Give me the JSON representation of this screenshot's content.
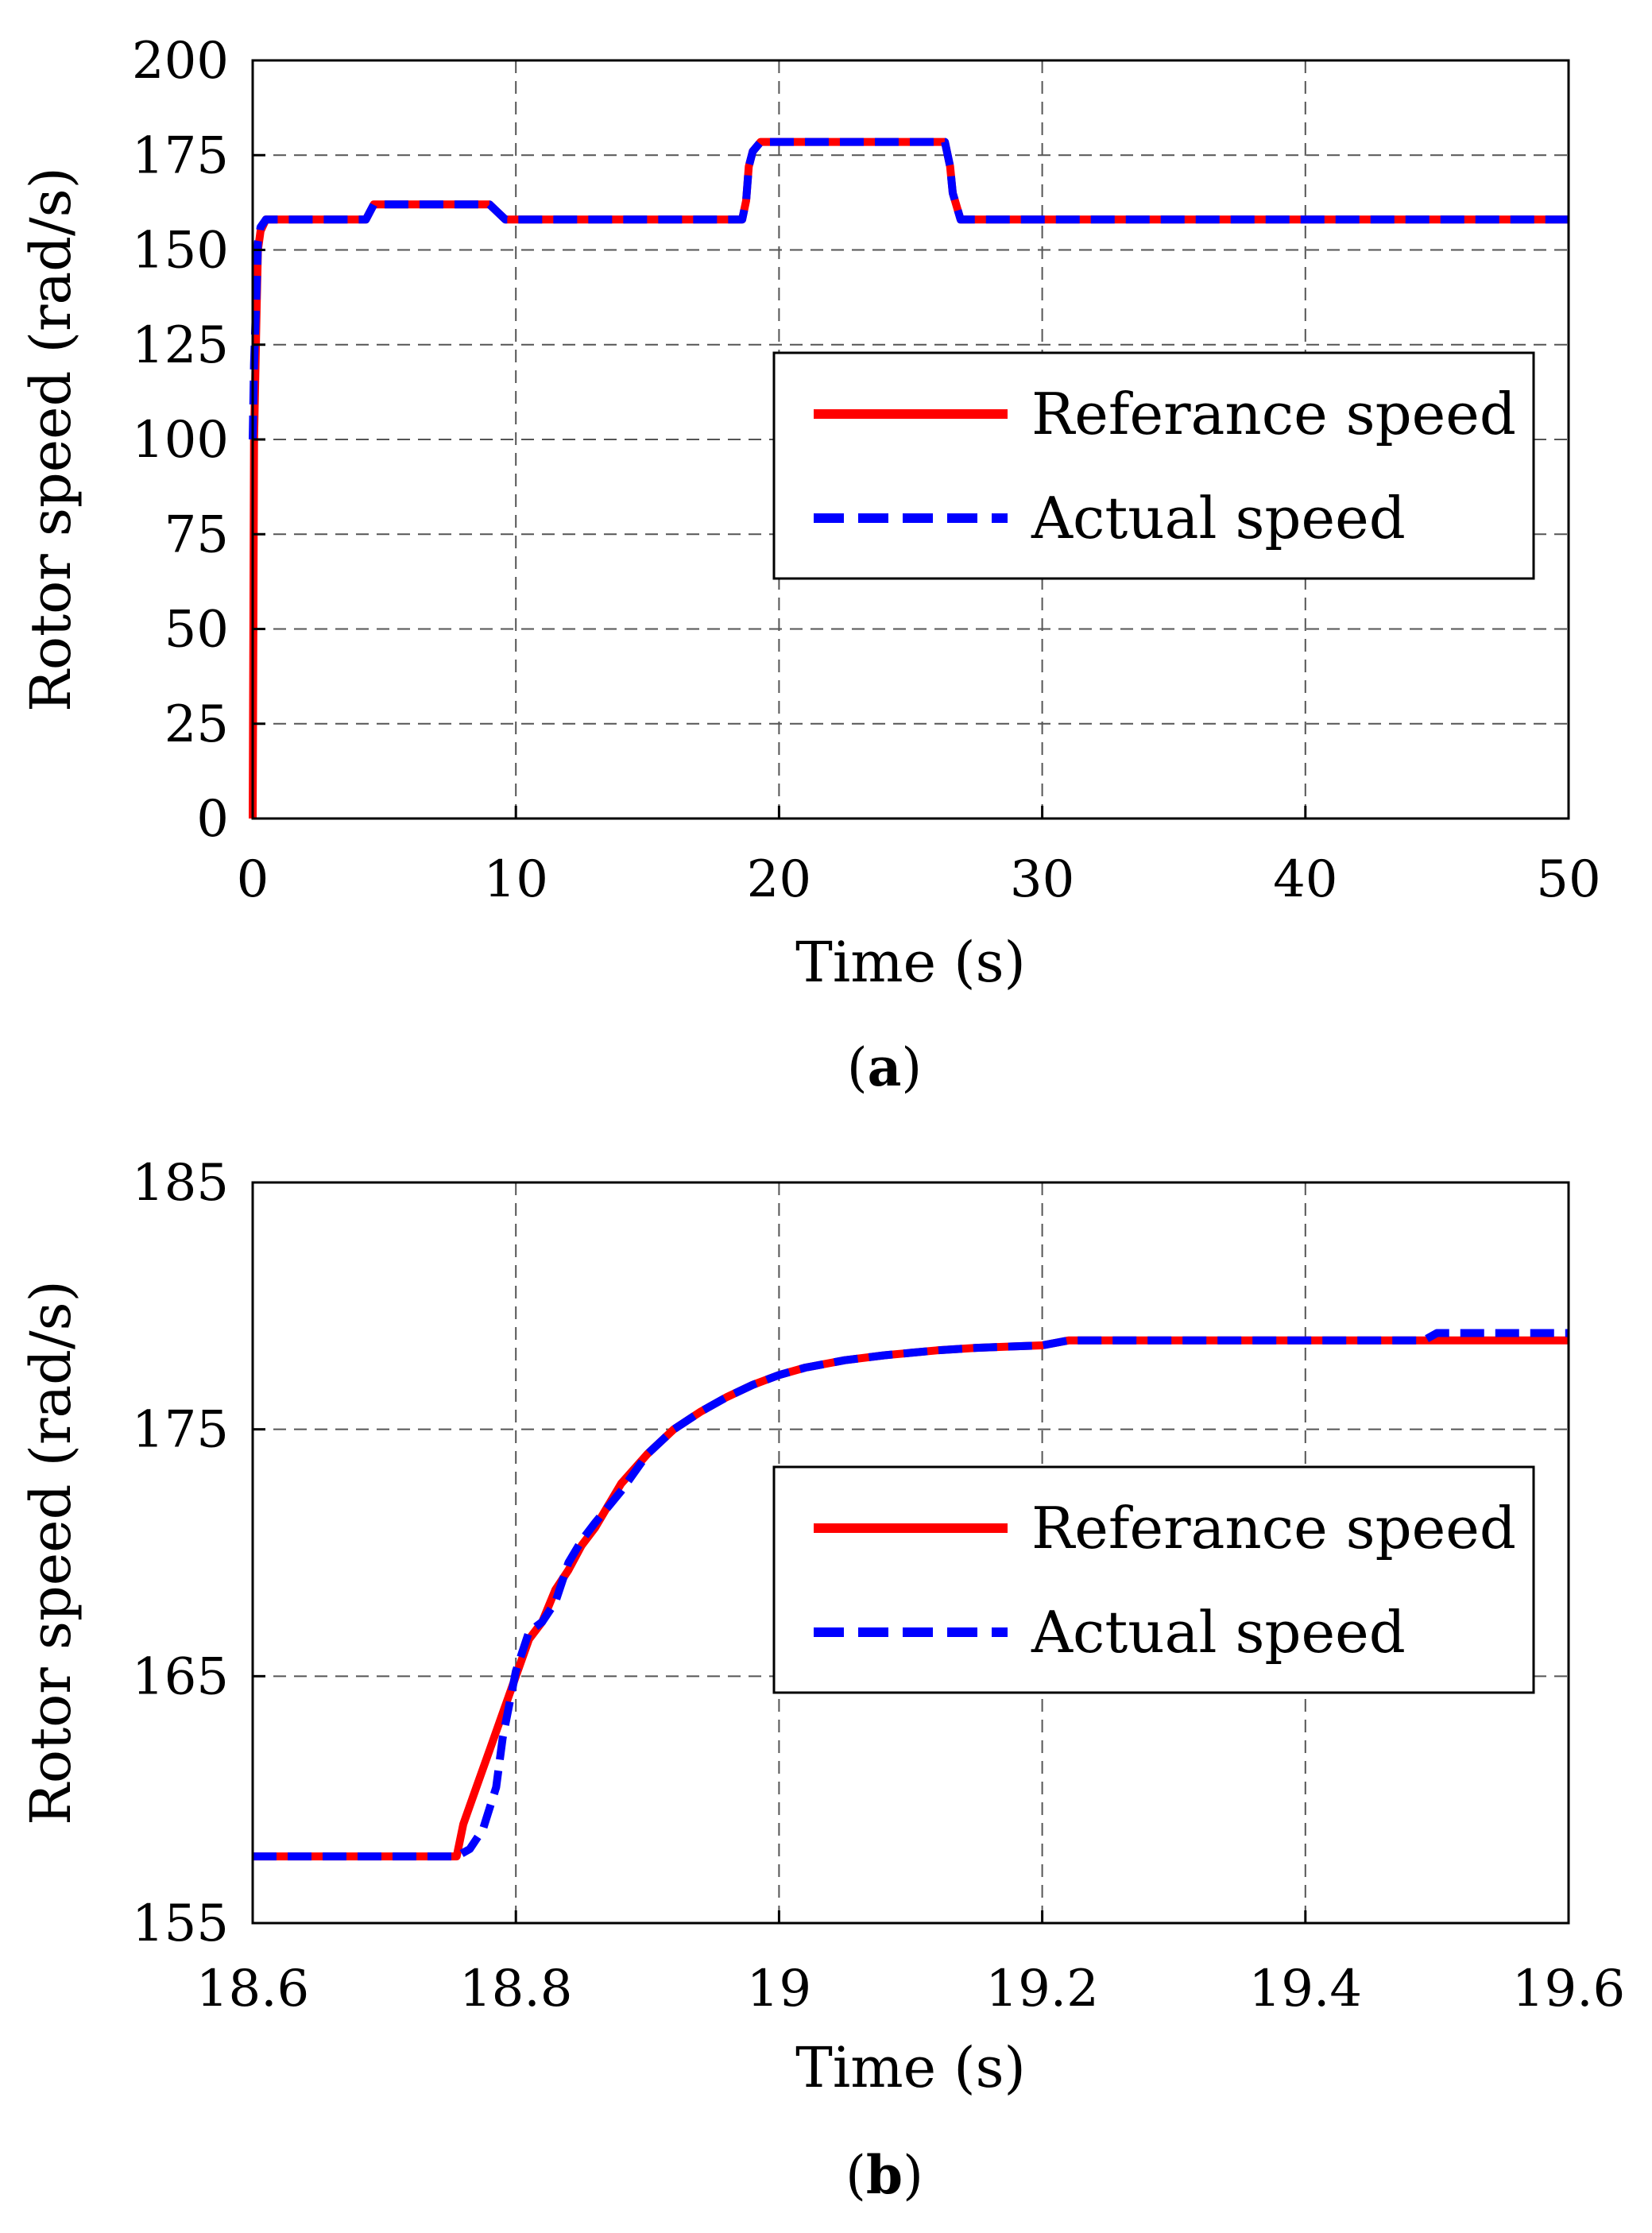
{
  "chart_data": [
    {
      "type": "line",
      "caption_open": "(",
      "caption_letter": "a",
      "caption_close": ")",
      "xlabel": "Time (s)",
      "ylabel": "Rotor speed (rad/s)",
      "xlim": [
        0,
        50
      ],
      "ylim": [
        0,
        200
      ],
      "grid": true,
      "xticks": [
        0,
        10,
        20,
        30,
        40,
        50
      ],
      "xtick_labels": [
        "0",
        "10",
        "20",
        "30",
        "40",
        "50"
      ],
      "yticks": [
        0,
        25,
        50,
        75,
        100,
        125,
        150,
        175,
        200
      ],
      "ytick_labels": [
        "0",
        "25",
        "50",
        "75",
        "100",
        "125",
        "150",
        "175",
        "200"
      ],
      "legend_position": "right",
      "series": [
        {
          "name": "Referance speed",
          "color": "#ff0000",
          "style": "solid",
          "x": [
            0,
            0.05,
            0.15,
            0.2,
            0.3,
            0.5,
            4.3,
            4.6,
            9.0,
            9.6,
            18.6,
            18.75,
            18.85,
            19.0,
            19.3,
            26.3,
            26.5,
            26.6,
            26.9,
            27.2,
            50
          ],
          "y": [
            0,
            100,
            135,
            150,
            155,
            158,
            158,
            162,
            162,
            158,
            158,
            163,
            172,
            176,
            178.5,
            178.5,
            172,
            165,
            158,
            158,
            158
          ]
        },
        {
          "name": "Actual speed",
          "color": "#0000ff",
          "style": "dashed",
          "x": [
            0,
            0.05,
            0.15,
            0.2,
            0.3,
            0.5,
            4.3,
            4.6,
            9.0,
            9.6,
            18.6,
            18.75,
            18.85,
            19.0,
            19.3,
            26.3,
            26.5,
            26.6,
            26.9,
            27.2,
            50
          ],
          "y": [
            100,
            120,
            140,
            152,
            156,
            158,
            158,
            162,
            162,
            158,
            158,
            163,
            172,
            176,
            178.5,
            178.5,
            172,
            165,
            158,
            158,
            158
          ]
        }
      ]
    },
    {
      "type": "line",
      "caption_open": "(",
      "caption_letter": "b",
      "caption_close": ")",
      "xlabel": "Time (s)",
      "ylabel": "Rotor speed (rad/s)",
      "xlim": [
        18.6,
        19.6
      ],
      "ylim": [
        155,
        185
      ],
      "grid": true,
      "xticks": [
        18.6,
        18.8,
        19.0,
        19.2,
        19.4,
        19.6
      ],
      "xtick_labels": [
        "18.6",
        "18.8",
        "19",
        "19.2",
        "19.4",
        "19.6"
      ],
      "yticks": [
        155,
        165,
        175,
        185
      ],
      "ytick_labels": [
        "155",
        "165",
        "175",
        "185"
      ],
      "legend_position": "right",
      "series": [
        {
          "name": "Referance speed",
          "color": "#ff0000",
          "style": "solid",
          "x": [
            18.6,
            18.755,
            18.76,
            18.77,
            18.78,
            18.79,
            18.8,
            18.81,
            18.82,
            18.83,
            18.84,
            18.85,
            18.86,
            18.88,
            18.9,
            18.92,
            18.94,
            18.96,
            18.98,
            19.0,
            19.02,
            19.05,
            19.08,
            19.1,
            19.12,
            19.15,
            19.2,
            19.22,
            19.25,
            19.3,
            19.4,
            19.5,
            19.6
          ],
          "y": [
            157.7,
            157.7,
            159.0,
            160.5,
            162.0,
            163.5,
            165.0,
            166.5,
            167.2,
            168.5,
            169.3,
            170.3,
            171.0,
            172.8,
            174.0,
            175.0,
            175.7,
            176.3,
            176.8,
            177.2,
            177.5,
            177.8,
            178.0,
            178.1,
            178.2,
            178.3,
            178.4,
            178.6,
            178.6,
            178.6,
            178.6,
            178.6,
            178.6
          ]
        },
        {
          "name": "Actual speed",
          "color": "#0000ff",
          "style": "dashed",
          "x": [
            18.6,
            18.755,
            18.765,
            18.775,
            18.785,
            18.79,
            18.8,
            18.81,
            18.82,
            18.83,
            18.84,
            18.85,
            18.86,
            18.88,
            18.9,
            18.92,
            18.94,
            18.96,
            18.98,
            19.0,
            19.02,
            19.05,
            19.08,
            19.1,
            19.12,
            19.15,
            19.2,
            19.22,
            19.25,
            19.3,
            19.4,
            19.49,
            19.5,
            19.6
          ],
          "y": [
            157.7,
            157.7,
            158.0,
            158.8,
            160.5,
            162.5,
            165.2,
            166.8,
            167.2,
            168.0,
            169.6,
            170.5,
            171.2,
            172.5,
            174.0,
            175.0,
            175.7,
            176.3,
            176.8,
            177.2,
            177.5,
            177.8,
            178.0,
            178.1,
            178.2,
            178.3,
            178.4,
            178.6,
            178.6,
            178.6,
            178.6,
            178.6,
            178.9,
            178.9
          ]
        }
      ]
    }
  ]
}
